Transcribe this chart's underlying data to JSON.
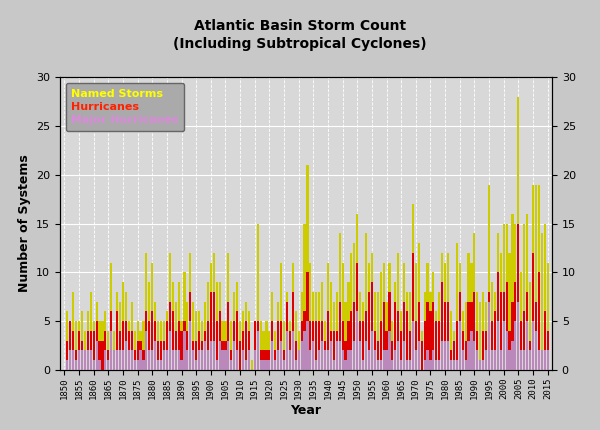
{
  "title": "Atlantic Basin Storm Count\n(Including Subtropical Cyclones)",
  "xlabel": "Year",
  "ylabel": "Number of Systems",
  "ylim": [
    0,
    30
  ],
  "yticks": [
    0,
    5,
    10,
    15,
    20,
    25,
    30
  ],
  "background_color": "#c8c8c8",
  "plot_bg_color": "#d8d8d8",
  "named_storms_color": "#cccc00",
  "hurricanes_color": "#dd0000",
  "major_hurricanes_color": "#bb88bb",
  "legend_labels": [
    "Named Storms",
    "Hurricanes",
    "Major Hurricanes"
  ],
  "legend_text_colors": [
    "#ffff00",
    "#ff2200",
    "#dd88dd"
  ],
  "legend_face_color": "#aaaaaa",
  "years": [
    1851,
    1852,
    1853,
    1854,
    1855,
    1856,
    1857,
    1858,
    1859,
    1860,
    1861,
    1862,
    1863,
    1864,
    1865,
    1866,
    1867,
    1868,
    1869,
    1870,
    1871,
    1872,
    1873,
    1874,
    1875,
    1876,
    1877,
    1878,
    1879,
    1880,
    1881,
    1882,
    1883,
    1884,
    1885,
    1886,
    1887,
    1888,
    1889,
    1890,
    1891,
    1892,
    1893,
    1894,
    1895,
    1896,
    1897,
    1898,
    1899,
    1900,
    1901,
    1902,
    1903,
    1904,
    1905,
    1906,
    1907,
    1908,
    1909,
    1910,
    1911,
    1912,
    1913,
    1914,
    1915,
    1916,
    1917,
    1918,
    1919,
    1920,
    1921,
    1922,
    1923,
    1924,
    1925,
    1926,
    1927,
    1928,
    1929,
    1930,
    1931,
    1932,
    1933,
    1934,
    1935,
    1936,
    1937,
    1938,
    1939,
    1940,
    1941,
    1942,
    1943,
    1944,
    1945,
    1946,
    1947,
    1948,
    1949,
    1950,
    1951,
    1952,
    1953,
    1954,
    1955,
    1956,
    1957,
    1958,
    1959,
    1960,
    1961,
    1962,
    1963,
    1964,
    1965,
    1966,
    1967,
    1968,
    1969,
    1970,
    1971,
    1972,
    1973,
    1974,
    1975,
    1976,
    1977,
    1978,
    1979,
    1980,
    1981,
    1982,
    1983,
    1984,
    1985,
    1986,
    1987,
    1988,
    1989,
    1990,
    1991,
    1992,
    1993,
    1994,
    1995,
    1996,
    1997,
    1998,
    1999,
    2000,
    2001,
    2002,
    2003,
    2004,
    2005,
    2006,
    2007,
    2008,
    2009,
    2010,
    2011,
    2012,
    2013,
    2014,
    2015
  ],
  "named_storms": [
    6,
    5,
    8,
    5,
    5,
    6,
    4,
    6,
    8,
    5,
    7,
    5,
    5,
    6,
    4,
    11,
    4,
    8,
    7,
    9,
    8,
    5,
    7,
    4,
    5,
    4,
    5,
    12,
    9,
    11,
    7,
    5,
    5,
    5,
    6,
    12,
    9,
    7,
    9,
    5,
    10,
    7,
    12,
    7,
    6,
    6,
    5,
    7,
    9,
    11,
    12,
    9,
    9,
    5,
    5,
    12,
    5,
    8,
    9,
    5,
    6,
    7,
    6,
    1,
    5,
    15,
    5,
    4,
    5,
    4,
    8,
    4,
    7,
    11,
    5,
    8,
    5,
    11,
    6,
    4,
    8,
    15,
    21,
    11,
    8,
    8,
    8,
    9,
    5,
    11,
    9,
    7,
    8,
    14,
    11,
    7,
    9,
    12,
    13,
    16,
    8,
    7,
    14,
    11,
    12,
    8,
    8,
    10,
    11,
    7,
    11,
    5,
    9,
    12,
    6,
    11,
    8,
    8,
    17,
    11,
    13,
    4,
    8,
    11,
    8,
    10,
    6,
    8,
    12,
    11,
    12,
    6,
    4,
    13,
    11,
    6,
    7,
    12,
    11,
    14,
    8,
    7,
    8,
    7,
    19,
    9,
    8,
    14,
    12,
    15,
    15,
    12,
    16,
    15,
    28,
    10,
    15,
    16,
    9,
    19,
    19,
    19,
    14,
    15,
    11
  ],
  "hurricanes": [
    3,
    5,
    4,
    2,
    4,
    3,
    2,
    4,
    4,
    4,
    5,
    3,
    3,
    4,
    2,
    6,
    2,
    6,
    4,
    5,
    5,
    4,
    4,
    2,
    3,
    3,
    2,
    6,
    5,
    6,
    5,
    3,
    3,
    3,
    5,
    7,
    6,
    4,
    5,
    4,
    5,
    4,
    8,
    3,
    3,
    4,
    3,
    4,
    5,
    8,
    8,
    5,
    6,
    3,
    3,
    7,
    2,
    5,
    6,
    3,
    4,
    5,
    4,
    0,
    5,
    5,
    2,
    2,
    2,
    2,
    5,
    2,
    5,
    5,
    2,
    7,
    4,
    8,
    3,
    2,
    5,
    6,
    10,
    5,
    5,
    5,
    5,
    5,
    3,
    6,
    4,
    4,
    4,
    7,
    5,
    3,
    5,
    6,
    7,
    11,
    5,
    5,
    6,
    8,
    9,
    4,
    3,
    5,
    7,
    4,
    8,
    3,
    7,
    6,
    4,
    7,
    6,
    4,
    12,
    5,
    7,
    3,
    5,
    7,
    6,
    7,
    5,
    5,
    9,
    7,
    7,
    2,
    3,
    5,
    8,
    4,
    3,
    7,
    7,
    8,
    4,
    1,
    4,
    4,
    8,
    5,
    6,
    10,
    8,
    8,
    9,
    4,
    7,
    9,
    15,
    5,
    6,
    8,
    3,
    12,
    7,
    10,
    2,
    6,
    4
  ],
  "major_hurricanes": [
    1,
    2,
    2,
    1,
    2,
    2,
    2,
    2,
    2,
    1,
    3,
    1,
    0,
    2,
    1,
    4,
    2,
    2,
    2,
    2,
    3,
    2,
    2,
    1,
    1,
    2,
    1,
    4,
    2,
    2,
    3,
    1,
    1,
    2,
    2,
    4,
    2,
    2,
    2,
    1,
    4,
    2,
    5,
    2,
    1,
    2,
    2,
    3,
    2,
    3,
    3,
    1,
    3,
    2,
    2,
    3,
    1,
    3,
    2,
    0,
    2,
    1,
    2,
    0,
    2,
    4,
    1,
    1,
    1,
    1,
    3,
    1,
    2,
    3,
    1,
    4,
    2,
    4,
    1,
    2,
    3,
    4,
    5,
    2,
    3,
    1,
    2,
    3,
    2,
    2,
    3,
    1,
    3,
    3,
    2,
    1,
    2,
    2,
    3,
    6,
    3,
    1,
    3,
    2,
    4,
    2,
    1,
    1,
    2,
    2,
    4,
    1,
    2,
    3,
    1,
    3,
    1,
    1,
    5,
    2,
    3,
    0,
    1,
    2,
    1,
    2,
    1,
    1,
    3,
    3,
    3,
    1,
    1,
    1,
    5,
    2,
    1,
    3,
    4,
    3,
    2,
    1,
    1,
    2,
    7,
    2,
    2,
    5,
    2,
    5,
    4,
    2,
    3,
    5,
    7,
    2,
    2,
    5,
    2,
    5,
    4,
    2,
    2,
    2,
    2
  ]
}
